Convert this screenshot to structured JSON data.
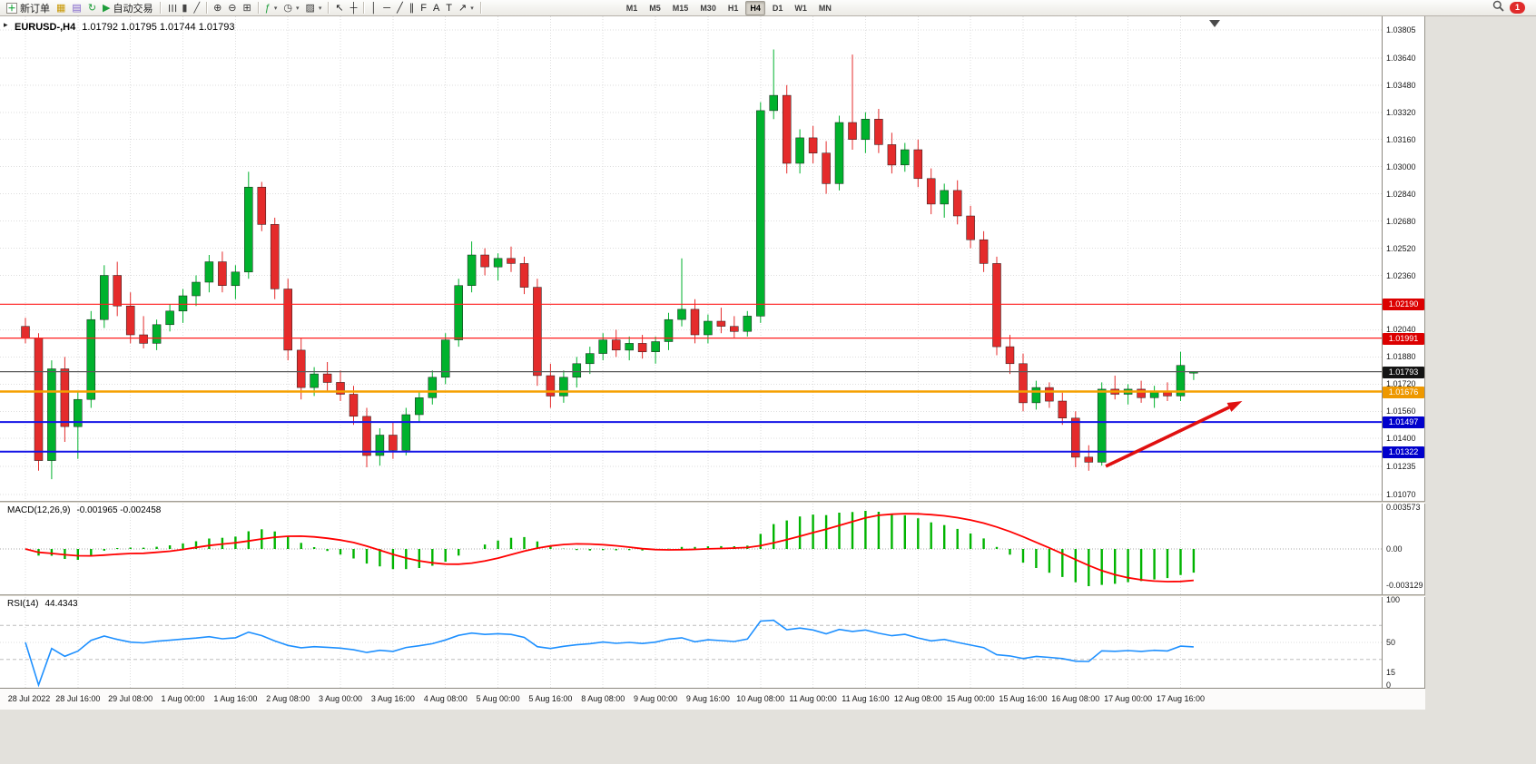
{
  "toolbar": {
    "items": [
      {
        "name": "new-order-button",
        "type": "button",
        "glyph": "＋",
        "glyph_color": "#089E2D",
        "label": "新订单",
        "doc": true
      },
      {
        "name": "market-watch-icon",
        "type": "icon",
        "glyph": "▦",
        "color": "#C79600"
      },
      {
        "name": "navigator-icon",
        "type": "icon",
        "glyph": "▤",
        "color": "#7A5CC8"
      },
      {
        "name": "refresh-icon",
        "type": "icon",
        "glyph": "↻",
        "color": "#1F9E3C"
      },
      {
        "name": "autotrading-button",
        "type": "button",
        "glyph": "▶",
        "glyph_color": "#1F9E3C",
        "label": "自动交易"
      },
      {
        "name": "toolbar-separator",
        "type": "sep"
      },
      {
        "name": "bar-chart-icon",
        "type": "icon",
        "glyph": "☰",
        "rot": true,
        "color": "#444444"
      },
      {
        "name": "candlestick-chart-icon",
        "type": "icon",
        "glyph": "▮",
        "color": "#444444"
      },
      {
        "name": "line-chart-icon",
        "type": "icon",
        "glyph": "╱",
        "color": "#444444"
      },
      {
        "name": "toolbar-separator",
        "type": "sep"
      },
      {
        "name": "zoom-in-icon",
        "type": "icon",
        "glyph": "⊕",
        "color": "#333333"
      },
      {
        "name": "zoom-out-icon",
        "type": "icon",
        "glyph": "⊖",
        "color": "#333333"
      },
      {
        "name": "tile-windows-icon",
        "type": "icon",
        "glyph": "⊞",
        "color": "#333333"
      },
      {
        "name": "toolbar-separator",
        "type": "sep"
      },
      {
        "name": "indicators-icon",
        "type": "icon",
        "glyph": "ƒ",
        "color": "#1F9E3C",
        "caret": true
      },
      {
        "name": "periods-icon",
        "type": "icon",
        "glyph": "◷",
        "color": "#333333",
        "caret": true
      },
      {
        "name": "templates-icon",
        "type": "icon",
        "glyph": "▨",
        "color": "#333333",
        "caret": true
      },
      {
        "name": "toolbar-separator",
        "type": "sep"
      },
      {
        "name": "cursor-icon",
        "type": "icon",
        "glyph": "↖",
        "color": "#1E1E1E"
      },
      {
        "name": "crosshair-icon",
        "type": "icon",
        "glyph": "┼",
        "color": "#1E1E1E"
      },
      {
        "name": "toolbar-separator",
        "type": "sep"
      },
      {
        "name": "vertical-line-icon",
        "type": "icon",
        "glyph": "│",
        "color": "#1E1E1E"
      },
      {
        "name": "horizontal-line-icon",
        "type": "icon",
        "glyph": "─",
        "color": "#1E1E1E"
      },
      {
        "name": "trendline-icon",
        "type": "icon",
        "glyph": "╱",
        "color": "#1E1E1E"
      },
      {
        "name": "channel-icon",
        "type": "icon",
        "glyph": "∥",
        "color": "#1E1E1E"
      },
      {
        "name": "fibonacci-icon",
        "type": "icon",
        "glyph": "F",
        "color": "#1E1E1E"
      },
      {
        "name": "text-icon",
        "type": "icon",
        "glyph": "A",
        "color": "#1E1E1E"
      },
      {
        "name": "label-icon",
        "type": "icon",
        "glyph": "T",
        "color": "#1E1E1E"
      },
      {
        "name": "arrows-icon",
        "type": "icon",
        "glyph": "↗",
        "color": "#1E1E1E",
        "caret": true
      },
      {
        "name": "toolbar-separator",
        "type": "sep"
      }
    ],
    "timeframes": [
      "M1",
      "M5",
      "M15",
      "M30",
      "H1",
      "H4",
      "D1",
      "W1",
      "MN"
    ],
    "active_timeframe": "H4",
    "notification_count": "1"
  },
  "chart": {
    "title": "EURUSD-,H4",
    "ohlc": "1.01792 1.01795 1.01744 1.01793",
    "colors": {
      "bull": "#00B22D",
      "bear": "#E42B2B"
    },
    "price_ticks": [
      "1.03805",
      "1.03640",
      "1.03480",
      "1.03320",
      "1.03160",
      "1.03000",
      "1.02840",
      "1.02680",
      "1.02520",
      "1.02360",
      "1.02040",
      "1.01880",
      "1.01720",
      "1.01560",
      "1.01400",
      "1.01235",
      "1.01070"
    ],
    "levels": [
      {
        "label": "1.02190",
        "value": 1.0219,
        "color": "#FF1E1E",
        "tag_bg": "#DC0000",
        "width": 1.2,
        "name": "resistance-line-upper"
      },
      {
        "label": "1.01991",
        "value": 1.01991,
        "color": "#FF1E1E",
        "tag_bg": "#DC0000",
        "width": 1.2,
        "name": "resistance-line-lower"
      },
      {
        "label": "1.01793",
        "value": 1.01793,
        "color": "#5A5A5A",
        "tag_bg": "#141414",
        "width": 1.2,
        "name": "current-price-line"
      },
      {
        "label": "1.01676",
        "value": 1.01676,
        "color": "#F5A000",
        "tag_bg": "#EE9800",
        "width": 2.4,
        "name": "orange-pivot-line"
      },
      {
        "label": "1.01497",
        "value": 1.01497,
        "color": "#1414E6",
        "tag_bg": "#0000CC",
        "width": 2,
        "name": "support-line-upper"
      },
      {
        "label": "1.01322",
        "value": 1.01322,
        "color": "#1414E6",
        "tag_bg": "#0000CC",
        "width": 2,
        "name": "support-line-lower"
      }
    ],
    "time_labels": [
      "28 Jul 2022",
      "28 Jul 16:00",
      "29 Jul 08:00",
      "1 Aug 00:00",
      "1 Aug 16:00",
      "2 Aug 08:00",
      "3 Aug 00:00",
      "3 Aug 16:00",
      "4 Aug 08:00",
      "5 Aug 00:00",
      "5 Aug 16:00",
      "8 Aug 08:00",
      "9 Aug 00:00",
      "9 Aug 16:00",
      "10 Aug 08:00",
      "11 Aug 00:00",
      "11 Aug 16:00",
      "12 Aug 08:00",
      "15 Aug 00:00",
      "15 Aug 16:00",
      "16 Aug 08:00",
      "17 Aug 00:00",
      "17 Aug 16:00"
    ],
    "candles": [
      [
        1.0206,
        1.0211,
        1.0196,
        1.0199
      ],
      [
        1.0199,
        1.0202,
        1.0121,
        1.0127
      ],
      [
        1.0127,
        1.0186,
        1.0116,
        1.0181
      ],
      [
        1.0181,
        1.0188,
        1.0138,
        1.0147
      ],
      [
        1.0147,
        1.0168,
        1.0128,
        1.0163
      ],
      [
        1.0163,
        1.0215,
        1.0158,
        1.021
      ],
      [
        1.021,
        1.0242,
        1.0205,
        1.0236
      ],
      [
        1.0236,
        1.0244,
        1.0212,
        1.0218
      ],
      [
        1.0218,
        1.0226,
        1.0196,
        1.0201
      ],
      [
        1.0201,
        1.0212,
        1.0193,
        1.0196
      ],
      [
        1.0196,
        1.021,
        1.0192,
        1.0207
      ],
      [
        1.0207,
        1.0219,
        1.0203,
        1.0215
      ],
      [
        1.0215,
        1.0228,
        1.0208,
        1.0224
      ],
      [
        1.0224,
        1.0236,
        1.0218,
        1.0232
      ],
      [
        1.0232,
        1.0248,
        1.0226,
        1.0244
      ],
      [
        1.0244,
        1.025,
        1.0226,
        1.023
      ],
      [
        1.023,
        1.0242,
        1.0222,
        1.0238
      ],
      [
        1.0238,
        1.0297,
        1.0234,
        1.0288
      ],
      [
        1.0288,
        1.0291,
        1.0262,
        1.0266
      ],
      [
        1.0266,
        1.027,
        1.0222,
        1.0228
      ],
      [
        1.0228,
        1.0234,
        1.0186,
        1.0192
      ],
      [
        1.0192,
        1.0199,
        1.0163,
        1.017
      ],
      [
        1.017,
        1.0182,
        1.0165,
        1.0178
      ],
      [
        1.0178,
        1.0185,
        1.0168,
        1.0173
      ],
      [
        1.0173,
        1.018,
        1.0162,
        1.0166
      ],
      [
        1.0166,
        1.0171,
        1.0148,
        1.0153
      ],
      [
        1.0153,
        1.0158,
        1.0123,
        1.013
      ],
      [
        1.013,
        1.0146,
        1.0124,
        1.0142
      ],
      [
        1.0142,
        1.015,
        1.0128,
        1.0133
      ],
      [
        1.0133,
        1.0158,
        1.013,
        1.0154
      ],
      [
        1.0154,
        1.0168,
        1.015,
        1.0164
      ],
      [
        1.0164,
        1.018,
        1.016,
        1.0176
      ],
      [
        1.0176,
        1.0202,
        1.0172,
        1.0198
      ],
      [
        1.0198,
        1.0234,
        1.0194,
        1.023
      ],
      [
        1.023,
        1.0256,
        1.0226,
        1.0248
      ],
      [
        1.0248,
        1.0252,
        1.0236,
        1.0241
      ],
      [
        1.0241,
        1.0249,
        1.0233,
        1.0246
      ],
      [
        1.0246,
        1.0253,
        1.0238,
        1.0243
      ],
      [
        1.0243,
        1.0247,
        1.0225,
        1.0229
      ],
      [
        1.0229,
        1.0234,
        1.0171,
        1.0177
      ],
      [
        1.0177,
        1.0184,
        1.0158,
        1.0165
      ],
      [
        1.0165,
        1.018,
        1.0161,
        1.0176
      ],
      [
        1.0176,
        1.0188,
        1.017,
        1.0184
      ],
      [
        1.0184,
        1.0194,
        1.0178,
        1.019
      ],
      [
        1.019,
        1.0202,
        1.0186,
        1.0198
      ],
      [
        1.0198,
        1.0204,
        1.0188,
        1.0192
      ],
      [
        1.0192,
        1.02,
        1.0186,
        1.0196
      ],
      [
        1.0196,
        1.0201,
        1.0187,
        1.0191
      ],
      [
        1.0191,
        1.02,
        1.0184,
        1.0197
      ],
      [
        1.0197,
        1.0214,
        1.0192,
        1.021
      ],
      [
        1.021,
        1.0246,
        1.0206,
        1.0216
      ],
      [
        1.0216,
        1.0222,
        1.0196,
        1.0201
      ],
      [
        1.0201,
        1.0213,
        1.0196,
        1.0209
      ],
      [
        1.0209,
        1.0217,
        1.0202,
        1.0206
      ],
      [
        1.0206,
        1.0212,
        1.0199,
        1.0203
      ],
      [
        1.0203,
        1.0215,
        1.02,
        1.0212
      ],
      [
        1.0212,
        1.0338,
        1.0208,
        1.0333
      ],
      [
        1.0333,
        1.0369,
        1.0328,
        1.0342
      ],
      [
        1.0342,
        1.0348,
        1.0296,
        1.0302
      ],
      [
        1.0302,
        1.0322,
        1.0296,
        1.0317
      ],
      [
        1.0317,
        1.0324,
        1.0302,
        1.0308
      ],
      [
        1.0308,
        1.0315,
        1.0284,
        1.029
      ],
      [
        1.029,
        1.033,
        1.0286,
        1.0326
      ],
      [
        1.0326,
        1.0366,
        1.031,
        1.0316
      ],
      [
        1.0316,
        1.0332,
        1.0308,
        1.0328
      ],
      [
        1.0328,
        1.0334,
        1.0308,
        1.0313
      ],
      [
        1.0313,
        1.032,
        1.0296,
        1.0301
      ],
      [
        1.0301,
        1.0314,
        1.0297,
        1.031
      ],
      [
        1.031,
        1.0316,
        1.0288,
        1.0293
      ],
      [
        1.0293,
        1.0299,
        1.0272,
        1.0278
      ],
      [
        1.0278,
        1.029,
        1.027,
        1.0286
      ],
      [
        1.0286,
        1.0292,
        1.0266,
        1.0271
      ],
      [
        1.0271,
        1.0277,
        1.0252,
        1.0257
      ],
      [
        1.0257,
        1.0262,
        1.0238,
        1.0243
      ],
      [
        1.0243,
        1.0247,
        1.0189,
        1.0194
      ],
      [
        1.0194,
        1.0201,
        1.0178,
        1.0184
      ],
      [
        1.0184,
        1.019,
        1.0156,
        1.0161
      ],
      [
        1.0161,
        1.0174,
        1.0157,
        1.017
      ],
      [
        1.017,
        1.0173,
        1.0158,
        1.0162
      ],
      [
        1.0162,
        1.0167,
        1.0148,
        1.0152
      ],
      [
        1.0152,
        1.0156,
        1.0123,
        1.0129
      ],
      [
        1.0129,
        1.0136,
        1.0121,
        1.0126
      ],
      [
        1.0126,
        1.0173,
        1.0124,
        1.0169
      ],
      [
        1.0169,
        1.0177,
        1.0163,
        1.0166
      ],
      [
        1.0166,
        1.0172,
        1.016,
        1.0169
      ],
      [
        1.0169,
        1.0174,
        1.0161,
        1.0164
      ],
      [
        1.0164,
        1.0171,
        1.0158,
        1.0168
      ],
      [
        1.0168,
        1.0173,
        1.0162,
        1.0165
      ],
      [
        1.0165,
        1.0191,
        1.0162,
        1.0183
      ],
      [
        1.01792,
        1.01795,
        1.01744,
        1.01793
      ]
    ],
    "arrow": {
      "from_bar": 82.3,
      "from_price": 1.01236,
      "to_bar": 92.7,
      "to_price": 1.0162,
      "color": "#E01010"
    }
  },
  "macd": {
    "label": "MACD(12,26,9)",
    "values": "-0.001965 -0.002458",
    "scale": [
      "0.003573",
      "0.00",
      "-0.003129"
    ],
    "histogram_color": "#00B400",
    "signal_color": "#FF0000"
  },
  "rsi": {
    "label": "RSI(14)",
    "value": "44.4343",
    "scale": [
      "100",
      "50",
      "15",
      "0"
    ],
    "levels": [
      70,
      50,
      30
    ],
    "line_color": "#1E90FF"
  }
}
